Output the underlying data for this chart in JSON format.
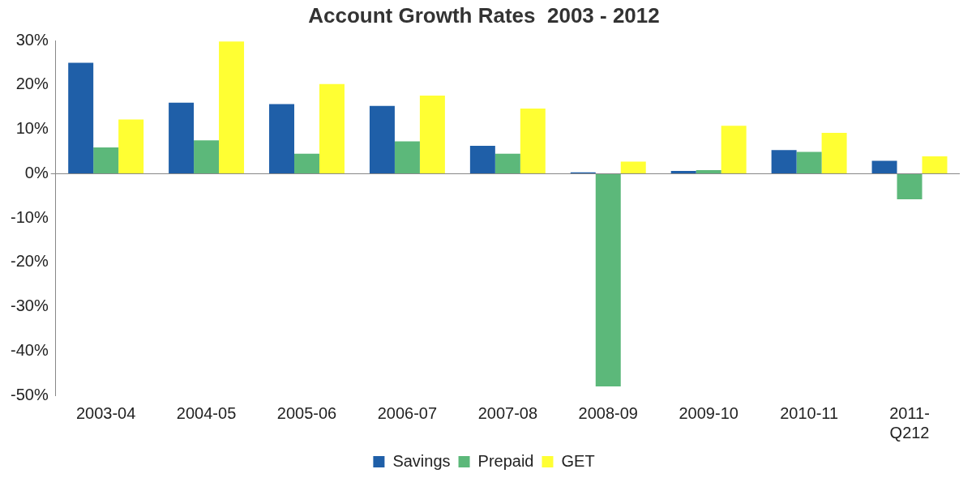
{
  "chart_data": {
    "type": "bar",
    "title": "Account Growth Rates  2003 - 2012",
    "categories": [
      "2003-04",
      "2004-05",
      "2005-06",
      "2006-07",
      "2007-08",
      "2008-09",
      "2009-10",
      "2010-11",
      "2011-Q212"
    ],
    "series": [
      {
        "name": "Savings",
        "color": "#1f5fa8",
        "values": [
          25,
          16,
          15.7,
          15.3,
          6.3,
          0.3,
          0.6,
          5.3,
          2.9
        ]
      },
      {
        "name": "Prepaid",
        "color": "#5cb87a",
        "values": [
          5.9,
          7.5,
          4.5,
          7.3,
          4.5,
          -48,
          0.8,
          4.9,
          -5.8
        ]
      },
      {
        "name": "GET",
        "color": "#ffff33",
        "values": [
          12.2,
          29.8,
          20.2,
          17.6,
          14.7,
          2.7,
          10.8,
          9.2,
          3.9
        ]
      }
    ],
    "ylim": [
      -50,
      30
    ],
    "yticks": [
      {
        "value": -50,
        "label": "-50%"
      },
      {
        "value": -40,
        "label": "-40%"
      },
      {
        "value": -30,
        "label": "-30%"
      },
      {
        "value": -20,
        "label": "-20%"
      },
      {
        "value": -10,
        "label": "-10%"
      },
      {
        "value": 0,
        "label": "0%"
      },
      {
        "value": 10,
        "label": "10%"
      },
      {
        "value": 20,
        "label": "20%"
      },
      {
        "value": 30,
        "label": "30%"
      }
    ],
    "legend": "bottom"
  }
}
